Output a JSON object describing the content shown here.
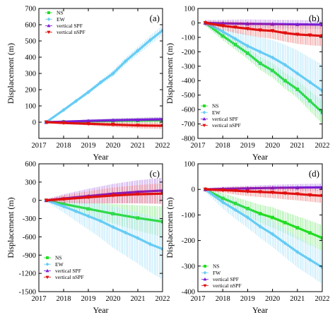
{
  "chart_data": [
    {
      "panel": "(a)",
      "type": "line",
      "xlabel": "Year",
      "ylabel": "Displacement (m)",
      "xlim": [
        2017,
        2022
      ],
      "ylim": [
        -100,
        700
      ],
      "yticks": [
        0,
        100,
        200,
        300,
        400,
        500,
        600,
        700
      ],
      "xticks": [
        2017,
        2018,
        2019,
        2020,
        2021,
        2022
      ],
      "legend_position": "top-left",
      "series": [
        {
          "name": "NS",
          "color": "#22dd22",
          "marker": "square",
          "x": [
            2017.3,
            2018.0,
            2019.0,
            2020.0,
            2021.0,
            2022.0
          ],
          "y": [
            0,
            2,
            5,
            8,
            10,
            12
          ],
          "err": [
            5,
            6,
            10,
            15,
            18,
            20
          ]
        },
        {
          "name": "EW",
          "color": "#66ccf5",
          "marker": "diamond",
          "x": [
            2017.3,
            2018.0,
            2018.5,
            2019.0,
            2019.5,
            2020.0,
            2020.5,
            2021.0,
            2021.5,
            2022.0
          ],
          "y": [
            0,
            75,
            130,
            185,
            245,
            300,
            375,
            440,
            505,
            565
          ],
          "err": [
            5,
            8,
            10,
            12,
            15,
            20,
            22,
            25,
            28,
            30
          ]
        },
        {
          "name": "vertical SPF",
          "color": "#7a1fd6",
          "marker": "triangle-up",
          "x": [
            2017.3,
            2018.0,
            2019.0,
            2020.0,
            2021.0,
            2022.0
          ],
          "y": [
            0,
            3,
            8,
            12,
            15,
            18
          ],
          "err": [
            5,
            5,
            8,
            10,
            12,
            14
          ]
        },
        {
          "name": "vertical nSPF",
          "color": "#e01010",
          "marker": "triangle-down",
          "x": [
            2017.3,
            2018.0,
            2019.0,
            2020.0,
            2021.0,
            2022.0
          ],
          "y": [
            0,
            -5,
            -10,
            -15,
            -20,
            -22
          ],
          "err": [
            5,
            6,
            10,
            15,
            18,
            20
          ]
        }
      ]
    },
    {
      "panel": "(b)",
      "type": "line",
      "xlabel": "Year",
      "ylabel": "Displacement (m)",
      "xlim": [
        2017,
        2022
      ],
      "ylim": [
        -800,
        100
      ],
      "yticks": [
        100,
        0,
        -100,
        -200,
        -300,
        -400,
        -500,
        -600,
        -700,
        -800
      ],
      "xticks": [
        2017,
        2018,
        2019,
        2020,
        2021,
        2022
      ],
      "legend_position": "bottom-left",
      "series": [
        {
          "name": "NS",
          "color": "#22dd22",
          "marker": "square",
          "x": [
            2017.3,
            2018.0,
            2018.5,
            2019.0,
            2019.5,
            2020.0,
            2020.5,
            2021.0,
            2021.5,
            2022.0
          ],
          "y": [
            0,
            -90,
            -150,
            -210,
            -280,
            -330,
            -400,
            -460,
            -540,
            -620
          ],
          "err": [
            20,
            30,
            35,
            40,
            45,
            50,
            55,
            60,
            70,
            80
          ]
        },
        {
          "name": "EW",
          "color": "#66ccf5",
          "marker": "diamond",
          "x": [
            2017.3,
            2018.0,
            2018.5,
            2019.0,
            2019.5,
            2020.0,
            2020.5,
            2021.0,
            2021.5,
            2022.0
          ],
          "y": [
            0,
            -60,
            -110,
            -160,
            -200,
            -240,
            -290,
            -350,
            -410,
            -470
          ],
          "err": [
            20,
            40,
            60,
            80,
            100,
            120,
            140,
            160,
            170,
            180
          ]
        },
        {
          "name": "vertical SPF",
          "color": "#7a1fd6",
          "marker": "triangle-up",
          "x": [
            2017.3,
            2018.0,
            2019.0,
            2020.0,
            2021.0,
            2022.0
          ],
          "y": [
            0,
            -3,
            -6,
            -8,
            -10,
            -12
          ],
          "err": [
            20,
            25,
            30,
            30,
            30,
            30
          ]
        },
        {
          "name": "vertical nSPF",
          "color": "#e01010",
          "marker": "triangle-down",
          "x": [
            2017.3,
            2018.0,
            2018.5,
            2019.0,
            2019.5,
            2020.0,
            2020.5,
            2021.0,
            2021.5,
            2022.0
          ],
          "y": [
            0,
            -20,
            -30,
            -40,
            -50,
            -55,
            -70,
            -80,
            -85,
            -90
          ],
          "err": [
            15,
            30,
            40,
            45,
            50,
            55,
            60,
            65,
            70,
            70
          ]
        }
      ]
    },
    {
      "panel": "(c)",
      "type": "line",
      "xlabel": "Year",
      "ylabel": "Displacement (m)",
      "xlim": [
        2017,
        2022
      ],
      "ylim": [
        -1500,
        600
      ],
      "yticks": [
        600,
        300,
        0,
        -300,
        -600,
        -900,
        -1200,
        -1500
      ],
      "xticks": [
        2017,
        2018,
        2019,
        2020,
        2021,
        2022
      ],
      "legend_position": "bottom-left",
      "series": [
        {
          "name": "NS",
          "color": "#22dd22",
          "marker": "square",
          "x": [
            2017.3,
            2018.0,
            2019.0,
            2020.0,
            2021.0,
            2022.0
          ],
          "y": [
            0,
            -60,
            -140,
            -220,
            -290,
            -350
          ],
          "err": [
            20,
            60,
            110,
            160,
            210,
            250
          ]
        },
        {
          "name": "EW",
          "color": "#66ccf5",
          "marker": "diamond",
          "x": [
            2017.3,
            2018.0,
            2018.5,
            2019.0,
            2019.5,
            2020.0,
            2020.5,
            2021.0,
            2021.5,
            2022.0
          ],
          "y": [
            0,
            -100,
            -180,
            -260,
            -340,
            -440,
            -530,
            -620,
            -720,
            -800
          ],
          "err": [
            20,
            100,
            160,
            220,
            280,
            340,
            380,
            420,
            460,
            500
          ]
        },
        {
          "name": "vertical SPF",
          "color": "#7a1fd6",
          "marker": "triangle-up",
          "x": [
            2017.3,
            2018.0,
            2019.0,
            2020.0,
            2021.0,
            2022.0
          ],
          "y": [
            0,
            30,
            70,
            110,
            140,
            160
          ],
          "err": [
            20,
            70,
            120,
            160,
            190,
            210
          ]
        },
        {
          "name": "vertical nSPF",
          "color": "#e01010",
          "marker": "triangle-down",
          "x": [
            2017.3,
            2018.0,
            2019.0,
            2020.0,
            2021.0,
            2022.0
          ],
          "y": [
            0,
            20,
            50,
            80,
            100,
            110
          ],
          "err": [
            20,
            60,
            100,
            130,
            150,
            170
          ]
        }
      ]
    },
    {
      "panel": "(d)",
      "type": "line",
      "xlabel": "Year",
      "ylabel": "Displacement (m)",
      "xlim": [
        2017,
        2022
      ],
      "ylim": [
        -400,
        100
      ],
      "yticks": [
        100,
        0,
        -100,
        -200,
        -300,
        -400
      ],
      "xticks": [
        2017,
        2018,
        2019,
        2020,
        2021,
        2022
      ],
      "legend_position": "bottom-left",
      "series": [
        {
          "name": "NS",
          "color": "#22dd22",
          "marker": "square",
          "x": [
            2017.3,
            2018.0,
            2018.5,
            2019.0,
            2019.5,
            2020.0,
            2020.5,
            2021.0,
            2021.5,
            2022.0
          ],
          "y": [
            0,
            -35,
            -55,
            -75,
            -95,
            -110,
            -130,
            -150,
            -170,
            -190
          ],
          "err": [
            10,
            20,
            25,
            30,
            35,
            40,
            42,
            45,
            48,
            50
          ]
        },
        {
          "name": "FW",
          "color": "#66ccf5",
          "marker": "diamond",
          "x": [
            2017.3,
            2018.0,
            2018.5,
            2019.0,
            2019.5,
            2020.0,
            2020.5,
            2021.0,
            2021.5,
            2022.0
          ],
          "y": [
            0,
            -50,
            -80,
            -110,
            -145,
            -175,
            -210,
            -245,
            -275,
            -305
          ],
          "err": [
            10,
            25,
            35,
            40,
            45,
            50,
            55,
            60,
            62,
            65
          ]
        },
        {
          "name": "vertical SPF",
          "color": "#7a1fd6",
          "marker": "triangle-up",
          "x": [
            2017.3,
            2018.0,
            2019.0,
            2020.0,
            2021.0,
            2022.0
          ],
          "y": [
            0,
            2,
            4,
            6,
            7,
            8
          ],
          "err": [
            5,
            8,
            10,
            12,
            14,
            15
          ]
        },
        {
          "name": "vertical nSPF",
          "color": "#e01010",
          "marker": "triangle-down",
          "x": [
            2017.3,
            2018.0,
            2018.5,
            2019.0,
            2019.5,
            2020.0,
            2020.5,
            2021.0,
            2021.5,
            2022.0
          ],
          "y": [
            0,
            -3,
            -5,
            -8,
            -10,
            -12,
            -15,
            -18,
            -22,
            -25
          ],
          "err": [
            5,
            10,
            15,
            18,
            20,
            22,
            24,
            25,
            26,
            28
          ]
        }
      ]
    }
  ]
}
